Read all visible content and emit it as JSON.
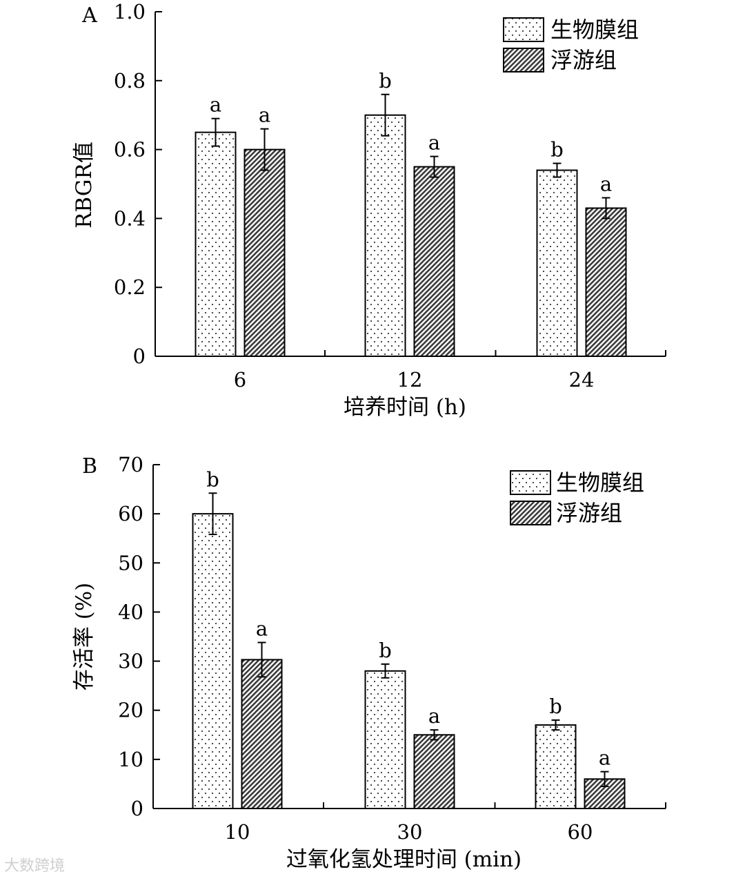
{
  "chart_data": [
    {
      "panel_label": "A",
      "type": "bar",
      "categories": [
        "6",
        "12",
        "24"
      ],
      "series": [
        {
          "name": "生物膜组",
          "pattern": "dots",
          "values": [
            0.65,
            0.7,
            0.54
          ],
          "errors": [
            0.04,
            0.06,
            0.02
          ],
          "sig": [
            "a",
            "b",
            "b"
          ]
        },
        {
          "name": "浮游组",
          "pattern": "hatch",
          "values": [
            0.6,
            0.55,
            0.43
          ],
          "errors": [
            0.06,
            0.03,
            0.03
          ],
          "sig": [
            "a",
            "a",
            "a"
          ]
        }
      ],
      "xlabel": "培养时间 (h)",
      "ylabel": "RBGR值",
      "ylim": [
        0,
        1.0
      ],
      "yticks": [
        0,
        0.2,
        0.4,
        0.6,
        0.8,
        1.0
      ],
      "ytick_labels": [
        "0",
        "0.2",
        "0.4",
        "0.6",
        "0.8",
        "1.0"
      ],
      "legend": "top-right"
    },
    {
      "panel_label": "B",
      "type": "bar",
      "categories": [
        "10",
        "30",
        "60"
      ],
      "series": [
        {
          "name": "生物膜组",
          "pattern": "dots",
          "values": [
            60,
            28,
            17
          ],
          "errors": [
            4.2,
            1.4,
            1.0
          ],
          "sig": [
            "b",
            "b",
            "b"
          ]
        },
        {
          "name": "浮游组",
          "pattern": "hatch",
          "values": [
            30.3,
            15,
            6
          ],
          "errors": [
            3.5,
            1.0,
            1.5
          ],
          "sig": [
            "a",
            "a",
            "a"
          ]
        }
      ],
      "xlabel": "过氧化氢处理时间 (min)",
      "ylabel": "存活率 (%)",
      "ylim": [
        0,
        70
      ],
      "yticks": [
        0,
        10,
        20,
        30,
        40,
        50,
        60,
        70
      ],
      "ytick_labels": [
        "0",
        "10",
        "20",
        "30",
        "40",
        "50",
        "60",
        "70"
      ],
      "legend": "top-right"
    }
  ],
  "watermark": "大数跨境"
}
